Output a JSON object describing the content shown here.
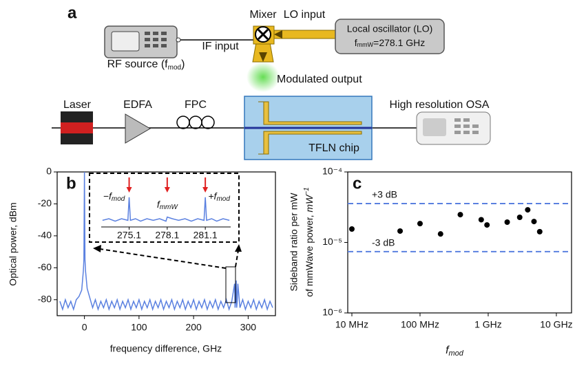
{
  "panel_labels": [
    "a",
    "b",
    "c"
  ],
  "diagram": {
    "mixer": "Mixer",
    "lo_input": "LO input",
    "if_input": "IF input",
    "lo_title": "Local oscillator (LO)",
    "lo_freq": [
      "f",
      "mmW",
      "=278.1 GHz"
    ],
    "rf_source": [
      "RF source (f",
      "mod",
      ")"
    ],
    "modulated_output": "Modulated output",
    "laser": "Laser",
    "edfa": "EDFA",
    "fpc": "FPC",
    "osa": "High resolution OSA",
    "chip": "TFLN chip"
  },
  "chart_data": [
    {
      "type": "line",
      "x_label": "frequency difference, GHz",
      "y_label": "Optical power, dBm",
      "xlim": [
        -50,
        350
      ],
      "ylim": [
        -90,
        0
      ],
      "xticks": [
        0,
        100,
        200,
        300
      ],
      "yticks": [
        0,
        -20,
        -40,
        -60,
        -80
      ],
      "x": [
        -45,
        -40,
        -35,
        -30,
        -25,
        -20,
        -15,
        -10,
        -5,
        -2,
        -1,
        0,
        1,
        2,
        5,
        10,
        15,
        20,
        25,
        30,
        35,
        40,
        45,
        50,
        55,
        60,
        65,
        70,
        75,
        80,
        85,
        90,
        95,
        100,
        105,
        110,
        115,
        120,
        125,
        130,
        135,
        140,
        145,
        150,
        155,
        160,
        165,
        170,
        175,
        180,
        185,
        190,
        195,
        200,
        205,
        210,
        215,
        220,
        225,
        230,
        235,
        240,
        245,
        250,
        255,
        260,
        265,
        270,
        275.1,
        276,
        277,
        278.1,
        279,
        280,
        281.1,
        285,
        290,
        295,
        300,
        305,
        310,
        315,
        320,
        325,
        330,
        335,
        340,
        345
      ],
      "series": [
        {
          "color": "#5a80e0",
          "values": [
            -81,
            -86,
            -80,
            -85,
            -81,
            -86,
            -80,
            -78,
            -74,
            -62,
            -55,
            0,
            -55,
            -62,
            -73,
            -79,
            -85,
            -80,
            -86,
            -81,
            -85,
            -80,
            -86,
            -81,
            -85,
            -80,
            -86,
            -81,
            -85,
            -80,
            -86,
            -81,
            -85,
            -80,
            -86,
            -81,
            -85,
            -80,
            -86,
            -81,
            -85,
            -80,
            -86,
            -81,
            -85,
            -80,
            -86,
            -81,
            -85,
            -80,
            -86,
            -81,
            -85,
            -80,
            -86,
            -81,
            -85,
            -80,
            -86,
            -81,
            -85,
            -80,
            -86,
            -81,
            -85,
            -80,
            -86,
            -81,
            -70,
            -85,
            -81,
            -68,
            -85,
            -81,
            -70,
            -85,
            -80,
            -86,
            -81,
            -85,
            -80,
            -86,
            -81,
            -85,
            -80,
            -86,
            -81,
            -85
          ]
        }
      ]
    },
    {
      "type": "line",
      "xlim": [
        272.9,
        283.1
      ],
      "ylim": [
        -88,
        -58
      ],
      "xticks": [
        275.1,
        278.1,
        281.1
      ],
      "annotations": [
        [
          "−f",
          "mod"
        ],
        [
          "f",
          "mmW"
        ],
        [
          "+f",
          "mod"
        ]
      ],
      "x": [
        273,
        273.5,
        274,
        274.5,
        275,
        275.1,
        275.2,
        275.6,
        276,
        276.5,
        277,
        277.5,
        278,
        278.1,
        278.5,
        279,
        279.5,
        280,
        280.5,
        281,
        281.1,
        281.2,
        281.6,
        282,
        282.5,
        283
      ],
      "series": [
        {
          "color": "#5a80e0",
          "values": [
            -84,
            -83,
            -84.5,
            -83,
            -84,
            -70,
            -84,
            -83,
            -84.5,
            -83,
            -84,
            -83,
            -84.5,
            -82,
            -83,
            -84,
            -83,
            -84.5,
            -83,
            -84,
            -70,
            -84,
            -83,
            -84.5,
            -83,
            -84
          ]
        }
      ]
    },
    {
      "type": "scatter",
      "x_label": [
        "f",
        "mod"
      ],
      "y_label": [
        "Sideband ratio per mW",
        "of mmWave power, ",
        "mW",
        "−1"
      ],
      "x_log": true,
      "y_log": true,
      "xlim": [
        8700000.0,
        16700000000.0
      ],
      "ylim": [
        1e-06,
        0.0001
      ],
      "xticks": [
        {
          "value": 10000000.0,
          "label": "10 MHz"
        },
        {
          "value": 100000000.0,
          "label": "100 MHz"
        },
        {
          "value": 1000000000.0,
          "label": "1 GHz"
        },
        {
          "value": 10000000000.0,
          "label": "10 GHz"
        }
      ],
      "yticks": [
        {
          "value": 1e-06,
          "label": "10⁻⁶"
        },
        {
          "value": 1e-05,
          "label": "10⁻⁵"
        },
        {
          "value": 0.0001,
          "label": "10⁻⁴"
        }
      ],
      "hlines": [
        {
          "value": 3.56e-05,
          "label": "+3 dB"
        },
        {
          "value": 7.4e-06,
          "label": "-3 dB"
        }
      ],
      "hline_color": "#5a80e0",
      "x": [
        10000000.0,
        51000000.0,
        100000000.0,
        200000000.0,
        390000000.0,
        790000000.0,
        960000000.0,
        1900000000.0,
        2900000000.0,
        3800000000.0,
        4700000000.0,
        5700000000.0
      ],
      "series": [
        {
          "color": "#000000",
          "values": [
            1.55e-05,
            1.45e-05,
            1.85e-05,
            1.32e-05,
            2.48e-05,
            2.1e-05,
            1.77e-05,
            1.94e-05,
            2.27e-05,
            2.9e-05,
            1.98e-05,
            1.42e-05
          ]
        }
      ]
    }
  ]
}
